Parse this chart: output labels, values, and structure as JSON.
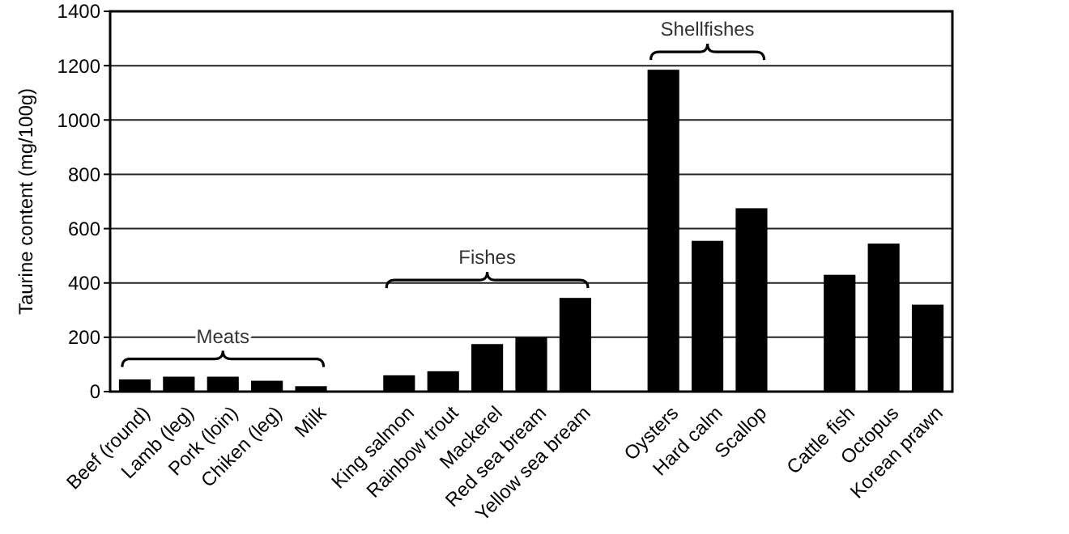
{
  "chart_data": {
    "type": "bar",
    "ylabel": "Taurine content (mg/100g)",
    "categories": [
      "Beef (round)",
      "Lamb (leg)",
      "Pork (loin)",
      "Chiken (leg)",
      "Milk",
      null,
      "King salmon",
      "Rainbow trout",
      "Mackerel",
      "Red sea bream",
      "Yellow sea bream",
      null,
      "Oysters",
      "Hard calm",
      "Scallop",
      null,
      "Cattle fish",
      "Octopus",
      "Korean prawn"
    ],
    "values": [
      45,
      55,
      55,
      40,
      20,
      null,
      60,
      75,
      175,
      200,
      345,
      null,
      1185,
      555,
      675,
      null,
      430,
      545,
      320
    ],
    "color": "#000000",
    "ylim": [
      0,
      1400
    ],
    "yticks": [
      0,
      200,
      400,
      600,
      800,
      1000,
      1200,
      1400
    ],
    "grid": "y",
    "annotations": [
      "Meats",
      "Fishes",
      "Shellfishes"
    ]
  }
}
